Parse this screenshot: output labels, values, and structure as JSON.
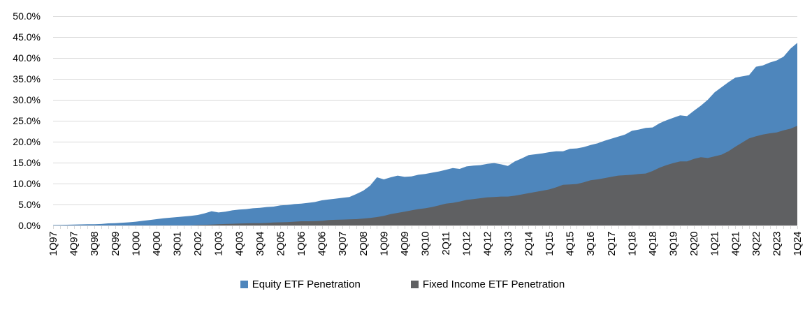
{
  "chart_data": {
    "type": "area",
    "overlap": true,
    "title": "",
    "legend_position": "bottom",
    "grid": true,
    "gridline_color": "#D9D9D9",
    "axis_text_color": "#000000",
    "series": [
      {
        "name": "Equity ETF Penetration",
        "color": "#4E86BC",
        "values": [
          0.1,
          0.13,
          0.17,
          0.2,
          0.25,
          0.3,
          0.3,
          0.35,
          0.5,
          0.55,
          0.65,
          0.75,
          0.9,
          1.1,
          1.3,
          1.5,
          1.7,
          1.85,
          2.0,
          2.15,
          2.3,
          2.5,
          2.9,
          3.4,
          3.1,
          3.3,
          3.6,
          3.8,
          3.9,
          4.1,
          4.2,
          4.4,
          4.5,
          4.8,
          4.9,
          5.1,
          5.2,
          5.4,
          5.6,
          6.0,
          6.2,
          6.4,
          6.6,
          6.8,
          7.5,
          8.3,
          9.5,
          11.5,
          11.0,
          11.5,
          11.9,
          11.6,
          11.7,
          12.1,
          12.3,
          12.6,
          12.9,
          13.3,
          13.7,
          13.5,
          14.1,
          14.3,
          14.4,
          14.7,
          14.9,
          14.6,
          14.2,
          15.3,
          16.0,
          16.8,
          17.0,
          17.2,
          17.5,
          17.7,
          17.7,
          18.3,
          18.4,
          18.7,
          19.2,
          19.6,
          20.2,
          20.7,
          21.2,
          21.7,
          22.6,
          22.9,
          23.3,
          23.4,
          24.4,
          25.1,
          25.7,
          26.3,
          26.1,
          27.4,
          28.6,
          30.0,
          31.8,
          33.0,
          34.2,
          35.3,
          35.6,
          35.9,
          37.9,
          38.2,
          38.9,
          39.4,
          40.3,
          42.2,
          43.6
        ]
      },
      {
        "name": "Fixed Income ETF Penetration",
        "color": "#5F6062",
        "values": [
          0,
          0,
          0,
          0,
          0,
          0,
          0,
          0,
          0,
          0,
          0,
          0,
          0,
          0,
          0,
          0,
          0,
          0,
          0,
          0,
          0,
          0.1,
          0.15,
          0.2,
          0.3,
          0.35,
          0.4,
          0.45,
          0.5,
          0.55,
          0.55,
          0.6,
          0.7,
          0.75,
          0.8,
          0.9,
          1.0,
          1.0,
          1.05,
          1.1,
          1.3,
          1.35,
          1.4,
          1.45,
          1.5,
          1.65,
          1.8,
          2.0,
          2.3,
          2.7,
          3.0,
          3.3,
          3.6,
          3.9,
          4.1,
          4.4,
          4.8,
          5.2,
          5.4,
          5.7,
          6.1,
          6.3,
          6.5,
          6.7,
          6.8,
          6.9,
          6.9,
          7.1,
          7.4,
          7.7,
          8.0,
          8.3,
          8.6,
          9.1,
          9.7,
          9.8,
          9.9,
          10.3,
          10.8,
          11.0,
          11.3,
          11.6,
          11.9,
          12.0,
          12.1,
          12.3,
          12.4,
          13.0,
          13.8,
          14.4,
          14.9,
          15.3,
          15.3,
          15.9,
          16.3,
          16.1,
          16.5,
          16.9,
          17.7,
          18.8,
          19.8,
          20.8,
          21.3,
          21.7,
          22.0,
          22.2,
          22.7,
          23.1,
          23.8
        ]
      }
    ],
    "x_quarters": [
      "1Q97",
      "2Q97",
      "3Q97",
      "4Q97",
      "1Q98",
      "2Q98",
      "3Q98",
      "4Q98",
      "1Q99",
      "2Q99",
      "3Q99",
      "4Q99",
      "1Q00",
      "2Q00",
      "3Q00",
      "4Q00",
      "1Q01",
      "2Q01",
      "3Q01",
      "4Q01",
      "1Q02",
      "2Q02",
      "3Q02",
      "4Q02",
      "1Q03",
      "2Q03",
      "3Q03",
      "4Q03",
      "1Q04",
      "2Q04",
      "3Q04",
      "4Q04",
      "1Q05",
      "2Q05",
      "3Q05",
      "4Q05",
      "1Q06",
      "2Q06",
      "3Q06",
      "4Q06",
      "1Q07",
      "2Q07",
      "3Q07",
      "4Q07",
      "1Q08",
      "2Q08",
      "3Q08",
      "4Q08",
      "1Q09",
      "2Q09",
      "3Q09",
      "4Q09",
      "1Q10",
      "2Q10",
      "3Q10",
      "4Q10",
      "1Q11",
      "2Q11",
      "3Q11",
      "4Q11",
      "1Q12",
      "2Q12",
      "3Q12",
      "4Q12",
      "1Q13",
      "2Q13",
      "3Q13",
      "4Q13",
      "1Q14",
      "2Q14",
      "3Q14",
      "4Q14",
      "1Q15",
      "2Q15",
      "3Q15",
      "4Q15",
      "1Q16",
      "2Q16",
      "3Q16",
      "4Q16",
      "1Q17",
      "2Q17",
      "3Q17",
      "4Q17",
      "1Q18",
      "2Q18",
      "3Q18",
      "4Q18",
      "1Q19",
      "2Q19",
      "3Q19",
      "4Q19",
      "1Q20",
      "2Q20",
      "3Q20",
      "4Q20",
      "1Q21",
      "2Q21",
      "3Q21",
      "4Q21",
      "1Q22",
      "2Q22",
      "3Q22",
      "4Q22",
      "1Q23",
      "2Q23",
      "3Q23",
      "4Q23",
      "1Q24"
    ],
    "x_label_every": 3,
    "x_tick_labels_visible": [
      "1Q97",
      "4Q97",
      "3Q98",
      "2Q99",
      "1Q00",
      "4Q00",
      "3Q01",
      "2Q02",
      "1Q03",
      "4Q03",
      "3Q04",
      "2Q05",
      "1Q06",
      "4Q06",
      "3Q07",
      "2Q08",
      "1Q09",
      "4Q09",
      "3Q10",
      "2Q11",
      "1Q12",
      "4Q12",
      "3Q13",
      "2Q14",
      "1Q15",
      "4Q15",
      "3Q16",
      "2Q17",
      "1Q18",
      "4Q18",
      "3Q19",
      "2Q20",
      "1Q21",
      "4Q21",
      "3Q22",
      "2Q23",
      "1Q24"
    ],
    "y_axis": {
      "min": 0,
      "max": 50,
      "step": 5,
      "tick_labels": [
        "0.0%",
        "5.0%",
        "10.0%",
        "15.0%",
        "20.0%",
        "25.0%",
        "30.0%",
        "35.0%",
        "40.0%",
        "45.0%",
        "50.0%"
      ]
    }
  },
  "legend": {
    "items": [
      {
        "label": "Equity ETF Penetration",
        "color": "#4E86BC"
      },
      {
        "label": "Fixed Income ETF Penetration",
        "color": "#5F6062"
      }
    ]
  }
}
